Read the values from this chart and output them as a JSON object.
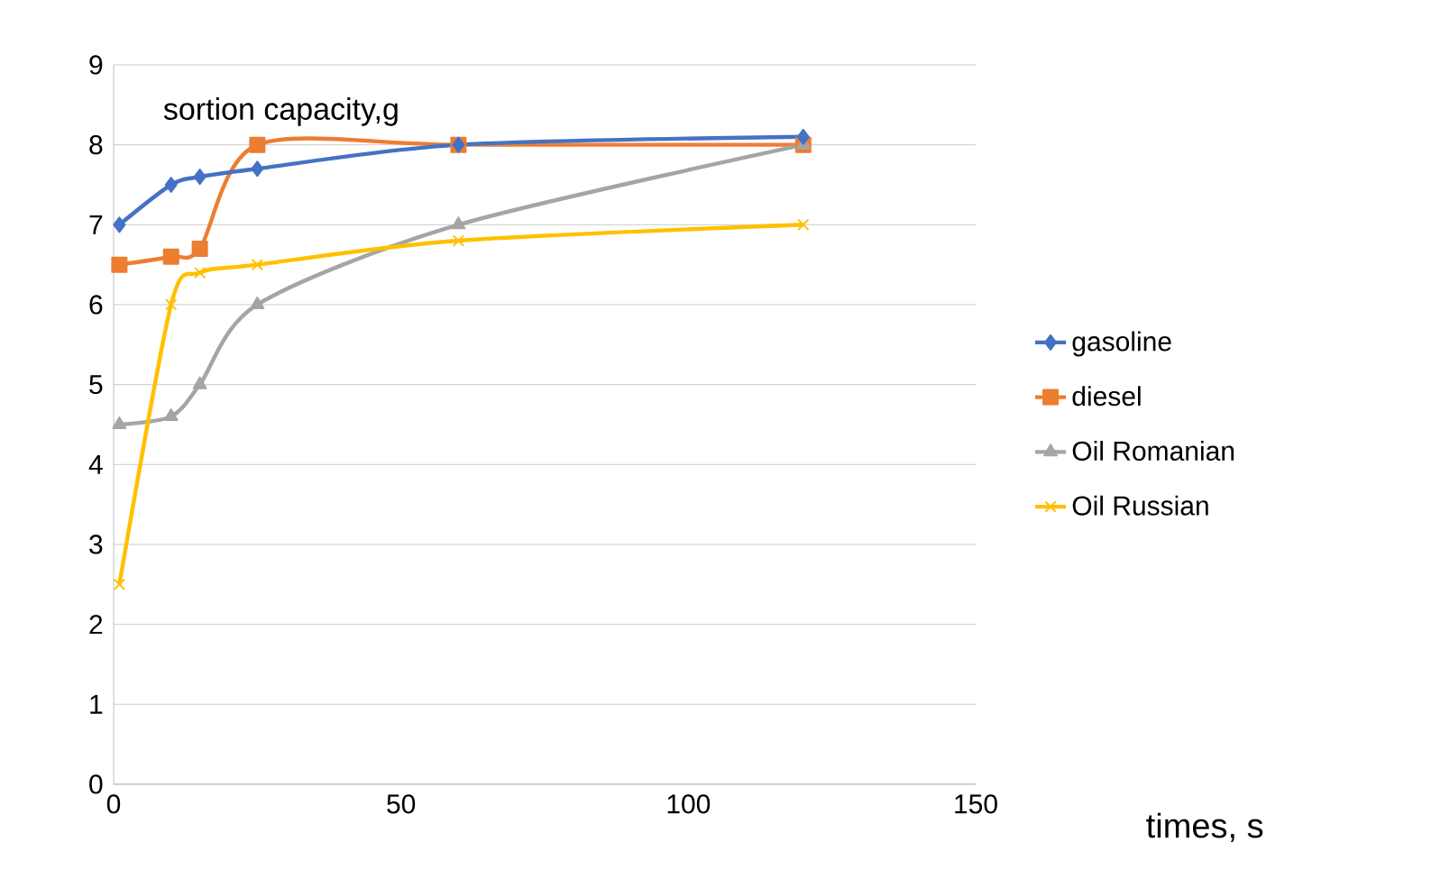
{
  "chart_data": {
    "type": "line",
    "ylabel": "sortion capacity,g",
    "xlabel": "times, s",
    "xlim": [
      0,
      150
    ],
    "xticks": [
      0,
      50,
      100,
      150
    ],
    "ylim": [
      0,
      9
    ],
    "yticks": [
      0,
      1,
      2,
      3,
      4,
      5,
      6,
      7,
      8,
      9
    ],
    "grid": "y",
    "legend": "right",
    "line_style": "solid",
    "series": [
      {
        "name": "gasoline",
        "color": "#4472c4",
        "marker": "diamond",
        "x": [
          1,
          10,
          15,
          25,
          60,
          120
        ],
        "values": [
          7,
          7.5,
          7.6,
          7.7,
          8,
          8.1
        ]
      },
      {
        "name": "diesel",
        "color": "#ed7d31",
        "marker": "square",
        "x": [
          1,
          10,
          15,
          25,
          60,
          120
        ],
        "values": [
          6.5,
          6.6,
          6.7,
          8,
          8,
          8
        ]
      },
      {
        "name": "Oil Romanian",
        "color": "#a5a5a5",
        "marker": "triangle",
        "x": [
          1,
          10,
          15,
          25,
          60,
          120
        ],
        "values": [
          4.5,
          4.6,
          5,
          6,
          7,
          8
        ]
      },
      {
        "name": "Oil Russian",
        "color": "#ffc000",
        "marker": "cross",
        "x": [
          1,
          10,
          15,
          25,
          60,
          120
        ],
        "values": [
          2.5,
          6,
          6.4,
          6.5,
          6.8,
          7
        ]
      }
    ]
  }
}
